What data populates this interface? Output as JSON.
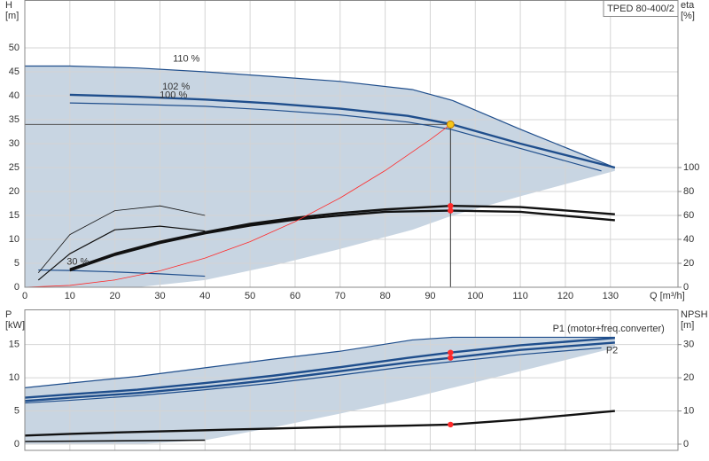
{
  "chart_data": [
    {
      "type": "line",
      "title": "TPED 80-400/2",
      "grid": true,
      "y_label": "H",
      "y_unit": "[m]",
      "y2_label": "eta",
      "y2_unit": "[%]",
      "x_label": "Q [m³/h]",
      "xlim": [
        0,
        145
      ],
      "xticks": [
        0,
        10,
        20,
        30,
        40,
        50,
        60,
        70,
        80,
        90,
        100,
        110,
        120,
        130
      ],
      "ylim": [
        0,
        60
      ],
      "yticks": [
        0,
        5,
        10,
        15,
        20,
        25,
        30,
        35,
        40,
        45,
        50
      ],
      "y2lim": [
        0,
        240
      ],
      "y2ticks": [
        0,
        20,
        40,
        60,
        80,
        100
      ],
      "band": {
        "color": "#c8d5e2",
        "x": [
          0,
          10,
          25,
          40,
          55,
          70,
          86,
          95,
          110,
          131
        ],
        "upper": [
          46.2,
          46.2,
          45.8,
          45,
          44,
          43,
          41.3,
          39,
          33,
          25
        ],
        "lower": [
          0,
          0,
          0,
          1.5,
          4.5,
          8,
          12,
          15,
          19,
          24.3
        ]
      },
      "series": [
        {
          "name": "110 %",
          "color": "#1f4e8c",
          "width": 1.2,
          "x": [
            0,
            10,
            25,
            40,
            55,
            70,
            86,
            95,
            110,
            131
          ],
          "values": [
            46.2,
            46.2,
            45.8,
            45,
            44,
            43,
            41.3,
            39,
            33,
            25
          ]
        },
        {
          "name": "102 %",
          "color": "#1f4e8c",
          "width": 2.4,
          "x": [
            10,
            25,
            40,
            55,
            70,
            85,
            94.5,
            110,
            131
          ],
          "values": [
            40.2,
            39.8,
            39.2,
            38.4,
            37.3,
            35.8,
            34.1,
            30,
            25
          ]
        },
        {
          "name": "100 %",
          "color": "#1f4e8c",
          "width": 1.2,
          "x": [
            10,
            25,
            40,
            55,
            70,
            85,
            94.5,
            110,
            128
          ],
          "values": [
            38.5,
            38.2,
            37.8,
            37,
            36,
            34.5,
            33,
            29,
            24.3
          ]
        },
        {
          "name": "30 %",
          "color": "#1f4e8c",
          "width": 1.2,
          "x": [
            3,
            10,
            20,
            30,
            40
          ],
          "values": [
            3.6,
            3.5,
            3.2,
            2.8,
            2.3
          ]
        },
        {
          "axis": "y2",
          "color": "#111111",
          "width": 2.4,
          "x": [
            10,
            20,
            30,
            40,
            50,
            60,
            70,
            80,
            94.5,
            110,
            131
          ],
          "values": [
            15,
            28,
            38,
            46,
            53,
            58,
            62,
            65,
            68,
            67,
            61
          ]
        },
        {
          "axis": "y2",
          "color": "#111111",
          "width": 2.4,
          "x": [
            10,
            20,
            30,
            40,
            50,
            60,
            70,
            80,
            94.5,
            110,
            131
          ],
          "values": [
            14,
            27,
            37,
            45,
            51.5,
            56.5,
            60,
            63,
            64,
            63,
            56
          ]
        },
        {
          "axis": "y2",
          "color": "#111111",
          "width": 0.8,
          "x": [
            3,
            10,
            20,
            30,
            40
          ],
          "values": [
            12,
            44,
            64,
            68,
            60
          ]
        },
        {
          "axis": "y2",
          "color": "#111111",
          "width": 1.2,
          "x": [
            3,
            10,
            20,
            30,
            40
          ],
          "values": [
            6,
            28,
            48,
            51,
            47
          ]
        },
        {
          "color": "#ff2a2a",
          "width": 0.8,
          "x": [
            0,
            10,
            20,
            30,
            40,
            50,
            60,
            70,
            80,
            90,
            94.5
          ],
          "values": [
            0,
            0.38,
            1.52,
            3.43,
            6.09,
            9.52,
            13.71,
            18.66,
            24.37,
            30.84,
            34
          ]
        }
      ],
      "points": [
        {
          "axis": "y2",
          "color": "#ff2a2a",
          "x": [
            94.5,
            94.5
          ],
          "values": [
            68,
            64
          ]
        }
      ],
      "duty_point": {
        "x": 94.5,
        "y": 34,
        "color": "#f5c518"
      }
    },
    {
      "type": "line",
      "grid": true,
      "y_label": "P",
      "y_unit": "[kW]",
      "y2_label": "NPSH",
      "y2_unit": "[m]",
      "xlim": [
        0,
        145
      ],
      "xticks": [
        0,
        10,
        20,
        30,
        40,
        50,
        60,
        70,
        80,
        90,
        100,
        110,
        120,
        130
      ],
      "ylim": [
        0,
        20.3
      ],
      "yticks": [
        0,
        5,
        10,
        15
      ],
      "y2lim": [
        0,
        40.6
      ],
      "y2ticks": [
        0,
        10,
        20,
        30
      ],
      "band": {
        "color": "#c8d5e2",
        "x": [
          0,
          10,
          25,
          40,
          55,
          70,
          86,
          95,
          110,
          131
        ],
        "upper": [
          8.5,
          9.2,
          10.2,
          11.5,
          12.8,
          14,
          15.7,
          16.1,
          16.1,
          16.1
        ],
        "lower": [
          0,
          0,
          0,
          0.6,
          2.5,
          4.6,
          7,
          8.5,
          11,
          14.5
        ]
      },
      "series": [
        {
          "color": "#1f4e8c",
          "width": 1.2,
          "x": [
            0,
            10,
            25,
            40,
            55,
            70,
            86,
            95,
            110,
            131
          ],
          "values": [
            8.5,
            9.2,
            10.2,
            11.5,
            12.8,
            14,
            15.7,
            16.1,
            16.1,
            16.1
          ]
        },
        {
          "name": "P1 (motor+freq.converter)",
          "color": "#1f4e8c",
          "width": 2.4,
          "x": [
            0,
            10,
            25,
            40,
            55,
            70,
            85,
            94.5,
            110,
            131
          ],
          "values": [
            7,
            7.5,
            8.2,
            9.2,
            10.3,
            11.6,
            13,
            13.8,
            14.9,
            16
          ]
        },
        {
          "name": "P2",
          "color": "#1f4e8c",
          "width": 2.4,
          "x": [
            0,
            10,
            25,
            40,
            55,
            70,
            85,
            94.5,
            110,
            131
          ],
          "values": [
            6.5,
            7,
            7.7,
            8.6,
            9.7,
            11,
            12.3,
            13,
            14.2,
            15.3
          ]
        },
        {
          "color": "#1f4e8c",
          "width": 1.2,
          "x": [
            0,
            10,
            25,
            40,
            55,
            70,
            85,
            94.5,
            110,
            128
          ],
          "values": [
            6.2,
            6.6,
            7.3,
            8.2,
            9.2,
            10.4,
            11.7,
            12.4,
            13.5,
            14.5
          ]
        },
        {
          "axis": "y2",
          "color": "#111111",
          "width": 2.4,
          "x": [
            0,
            10,
            25,
            40,
            55,
            70,
            85,
            94.5,
            110,
            131
          ],
          "values": [
            2.6,
            3.1,
            3.7,
            4.2,
            4.7,
            5.2,
            5.6,
            5.9,
            7.4,
            10
          ]
        },
        {
          "axis": "y2",
          "color": "#111111",
          "width": 1.6,
          "x": [
            0,
            40
          ],
          "values": [
            0.8,
            1.2
          ]
        }
      ],
      "points": [
        {
          "color": "#ff2a2a",
          "x": [
            94.5,
            94.5
          ],
          "values": [
            13.8,
            13
          ]
        },
        {
          "axis": "y2",
          "color": "#ff2a2a",
          "x": [
            94.5
          ],
          "values": [
            5.9
          ]
        }
      ]
    }
  ]
}
